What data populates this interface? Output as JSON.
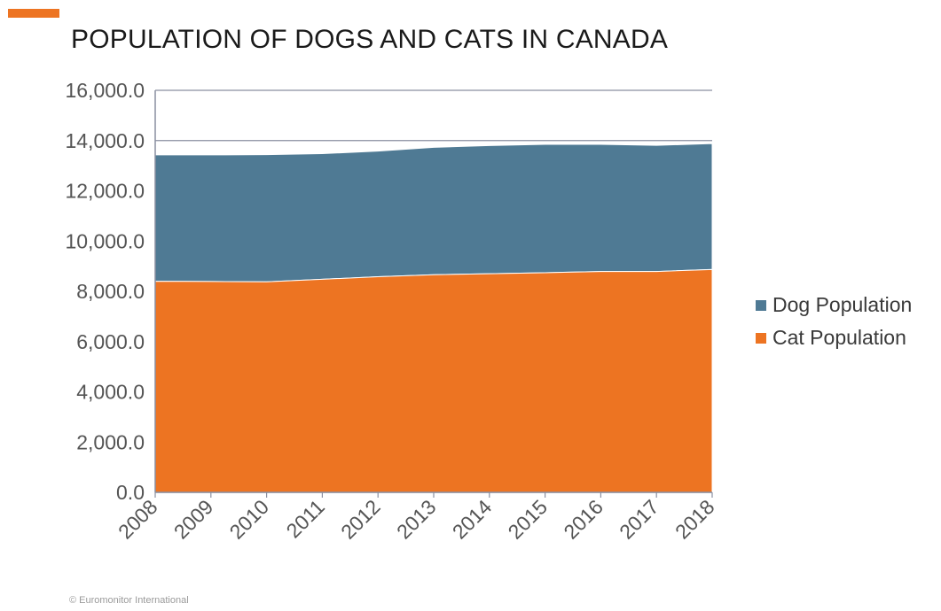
{
  "header": {
    "title": "POPULATION OF DOGS AND CATS IN CANADA"
  },
  "colors": {
    "accent": "#ed7422",
    "dog": "#4f7a94",
    "cat": "#ed7422"
  },
  "footer": {
    "text": "© Euromonitor International"
  },
  "chart_data": {
    "type": "area",
    "stacked": true,
    "title": "POPULATION OF DOGS AND CATS IN CANADA",
    "xlabel": "",
    "ylabel": "",
    "x": [
      "2008",
      "2009",
      "2010",
      "2011",
      "2012",
      "2013",
      "2014",
      "2015",
      "2016",
      "2017",
      "2018"
    ],
    "ylim": [
      0,
      16000
    ],
    "yticks": [
      "0.0",
      "2,000.0",
      "4,000.0",
      "6,000.0",
      "8,000.0",
      "10,000.0",
      "12,000.0",
      "14,000.0",
      "16,000.0"
    ],
    "grid": true,
    "legend_position": "right",
    "series": [
      {
        "name": "Cat Population",
        "color": "#ed7422",
        "values": [
          8400,
          8390,
          8380,
          8480,
          8580,
          8660,
          8700,
          8740,
          8790,
          8790,
          8870
        ]
      },
      {
        "name": "Dog Population",
        "color": "#4f7a94",
        "values": [
          5030,
          5040,
          5060,
          5000,
          5000,
          5070,
          5100,
          5110,
          5060,
          5020,
          5010
        ]
      }
    ]
  }
}
